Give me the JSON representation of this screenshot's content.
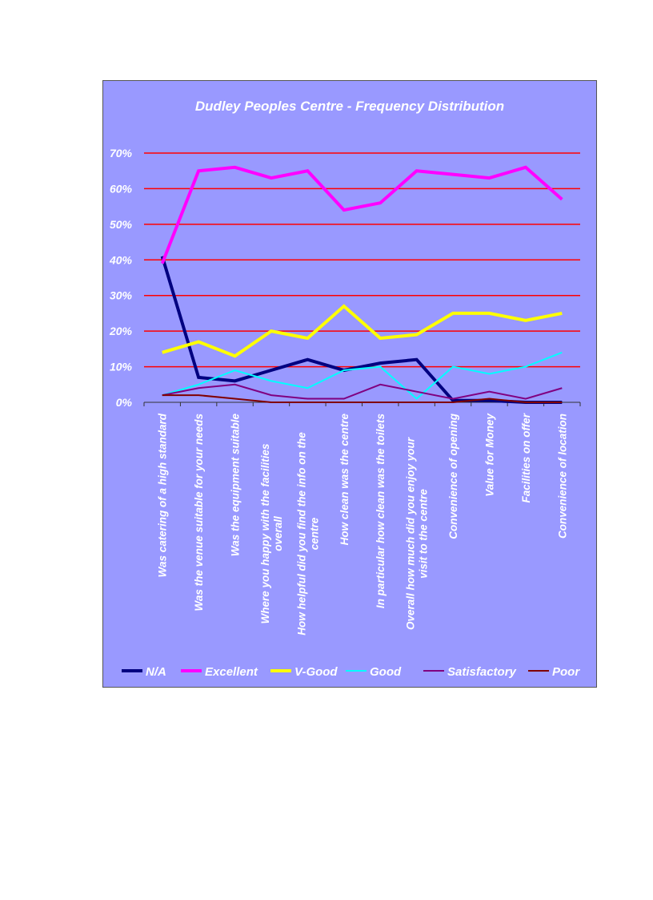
{
  "chart_data": {
    "type": "line",
    "title": "Dudley Peoples Centre - Frequency Distribution",
    "categories": [
      "Was catering of a high standard",
      "Was the venue suitable for your needs",
      "Was the equipment suitable",
      "Where you happy with the facilities overall",
      "How helpful did you find the info on the centre",
      "How clean was the centre",
      "In particular how clean was the toilets",
      "Overall how much did you enjoy your visit to the centre",
      "Convenience of opening",
      "Value for Money",
      "Facilities on offer",
      "Convenience of location"
    ],
    "category_lines": [
      [
        "Was catering of a high standard"
      ],
      [
        "Was the venue suitable for your needs"
      ],
      [
        "Was the equipment suitable"
      ],
      [
        "Where you happy with the facilities",
        "overall"
      ],
      [
        "How helpful did you find the info on the",
        "centre"
      ],
      [
        "How clean was the centre"
      ],
      [
        "In particular how clean was the toilets"
      ],
      [
        "Overall how much did you enjoy your",
        "visit to the centre"
      ],
      [
        "Convenience of opening"
      ],
      [
        "Value for Money"
      ],
      [
        "Facilities on offer"
      ],
      [
        "Convenience of location"
      ]
    ],
    "yticks": [
      "0%",
      "10%",
      "20%",
      "30%",
      "40%",
      "50%",
      "60%",
      "70%"
    ],
    "ylim": [
      0,
      70
    ],
    "grid": true,
    "legend": "bottom",
    "series": [
      {
        "name": "N/A",
        "color": "#000080",
        "width": 4,
        "values": [
          41,
          7,
          6,
          9,
          12,
          9,
          11,
          12,
          0.5,
          0.5,
          0,
          0
        ]
      },
      {
        "name": "Excellent",
        "color": "#ff00ff",
        "width": 4,
        "values": [
          39,
          65,
          66,
          63,
          65,
          54,
          56,
          65,
          64,
          63,
          66,
          57
        ]
      },
      {
        "name": "V-Good",
        "color": "#ffff00",
        "width": 4,
        "values": [
          14,
          17,
          13,
          20,
          18,
          27,
          18,
          19,
          25,
          25,
          23,
          25
        ]
      },
      {
        "name": "Good",
        "color": "#00ffff",
        "width": 2,
        "values": [
          2,
          5,
          9,
          6,
          4,
          9,
          10,
          1,
          10,
          8,
          10,
          14
        ]
      },
      {
        "name": "Satisfactory",
        "color": "#800080",
        "width": 2,
        "values": [
          2,
          4,
          5,
          2,
          1,
          1,
          5,
          3,
          1,
          3,
          1,
          4
        ]
      },
      {
        "name": "Poor",
        "color": "#800000",
        "width": 2,
        "values": [
          2,
          2,
          1,
          0,
          0,
          0,
          0,
          0,
          0,
          1,
          0,
          0
        ]
      }
    ]
  }
}
